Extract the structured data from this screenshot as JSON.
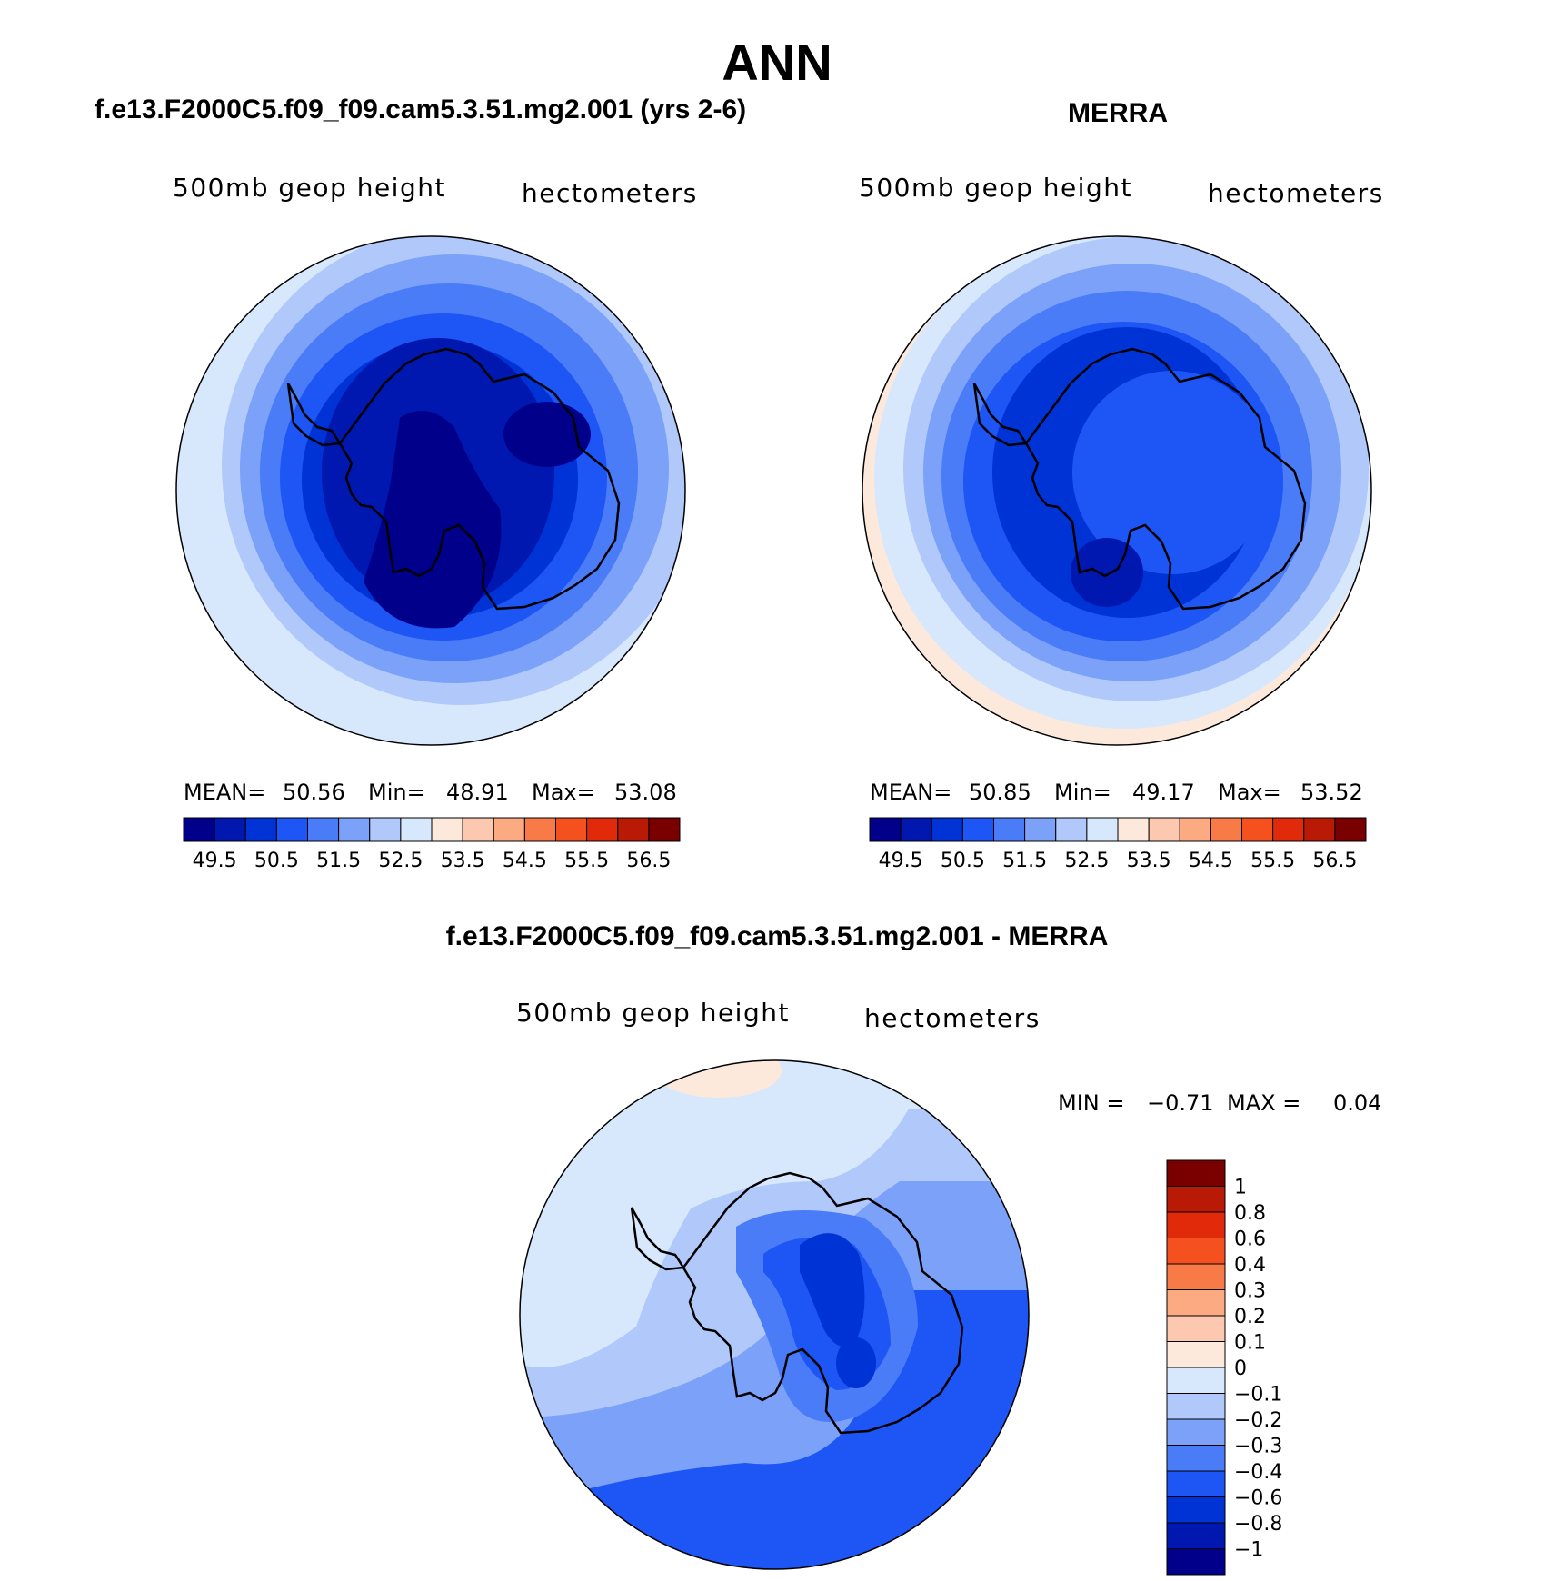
{
  "title": "ANN",
  "panels": [
    {
      "title": "f.e13.F2000C5.f09_f09.cam5.3.51.mg2.001 (yrs 2-6)",
      "variable": "500mb geop height",
      "units": "hectometers",
      "stats": {
        "mean_label": "MEAN=",
        "mean": "50.56",
        "min_label": "Min=",
        "min": "48.91",
        "max_label": "Max=",
        "max": "53.08"
      }
    },
    {
      "title": "MERRA",
      "variable": "500mb geop height",
      "units": "hectometers",
      "stats": {
        "mean_label": "MEAN=",
        "mean": "50.85",
        "min_label": "Min=",
        "min": "49.17",
        "max_label": "Max=",
        "max": "53.52"
      }
    },
    {
      "title": "f.e13.F2000C5.f09_f09.cam5.3.51.mg2.001 - MERRA",
      "variable": "500mb geop height",
      "units": "hectometers",
      "stats": {
        "min_label": "MIN =",
        "min": "−0.71",
        "max_label": "MAX =",
        "max": "0.04"
      }
    }
  ],
  "colorbar_abs": {
    "labels": [
      "49.5",
      "50.5",
      "51.5",
      "52.5",
      "53.5",
      "54.5",
      "55.5",
      "56.5"
    ],
    "colors": [
      "#00008a",
      "#0018b0",
      "#0033d6",
      "#1e55f5",
      "#4a7cf7",
      "#7ba2f8",
      "#b0c9fa",
      "#d8e8fc",
      "#fde9dc",
      "#fcc9b0",
      "#fbaa82",
      "#f77a47",
      "#f5511f",
      "#e02a0a",
      "#b81a06",
      "#7a0000"
    ]
  },
  "colorbar_diff": {
    "labels": [
      "1",
      "0.8",
      "0.6",
      "0.4",
      "0.3",
      "0.2",
      "0.1",
      "0",
      "−0.1",
      "−0.2",
      "−0.3",
      "−0.4",
      "−0.6",
      "−0.8",
      "−1"
    ],
    "colors": [
      "#7a0000",
      "#b81a06",
      "#e02a0a",
      "#f5511f",
      "#f77a47",
      "#fbaa82",
      "#fcc9b0",
      "#fde9dc",
      "#d8e8fc",
      "#b0c9fa",
      "#7ba2f8",
      "#4a7cf7",
      "#1e55f5",
      "#0033d6",
      "#0018b0",
      "#00008a"
    ]
  }
}
